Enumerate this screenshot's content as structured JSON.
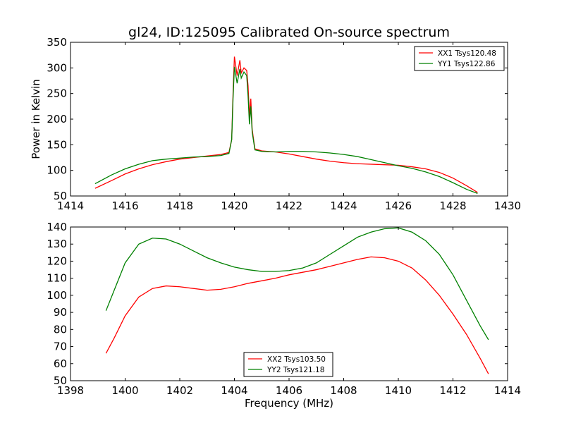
{
  "figure": {
    "title": "gl24, ID:125095 Calibrated On-source spectrum"
  },
  "chart_data": [
    {
      "type": "line",
      "title": "gl24, ID:125095 Calibrated On-source spectrum",
      "xlabel": "",
      "ylabel": "Power in Kelvin",
      "xlim": [
        1414,
        1430
      ],
      "ylim": [
        50,
        350
      ],
      "xticks": [
        1414,
        1416,
        1418,
        1420,
        1422,
        1424,
        1426,
        1428,
        1430
      ],
      "yticks": [
        50,
        100,
        150,
        200,
        250,
        300,
        350
      ],
      "grid": false,
      "legend_position": "top-right",
      "series": [
        {
          "name": "XX1 Tsys120.48",
          "color": "#ff0000",
          "points": [
            [
              1414.9,
              65
            ],
            [
              1415.5,
              80
            ],
            [
              1416,
              93
            ],
            [
              1416.5,
              103
            ],
            [
              1417,
              111
            ],
            [
              1417.5,
              117
            ],
            [
              1418,
              122
            ],
            [
              1418.5,
              125
            ],
            [
              1419,
              128
            ],
            [
              1419.5,
              131
            ],
            [
              1419.8,
              135
            ],
            [
              1419.9,
              160
            ],
            [
              1419.95,
              250
            ],
            [
              1420,
              322
            ],
            [
              1420.1,
              285
            ],
            [
              1420.2,
              315
            ],
            [
              1420.25,
              290
            ],
            [
              1420.35,
              300
            ],
            [
              1420.45,
              295
            ],
            [
              1420.5,
              265
            ],
            [
              1420.55,
              205
            ],
            [
              1420.6,
              240
            ],
            [
              1420.65,
              180
            ],
            [
              1420.75,
              142
            ],
            [
              1421,
              138
            ],
            [
              1421.5,
              136
            ],
            [
              1422,
              132
            ],
            [
              1422.5,
              127
            ],
            [
              1423,
              122
            ],
            [
              1423.5,
              118
            ],
            [
              1424,
              115
            ],
            [
              1424.5,
              113
            ],
            [
              1425,
              112
            ],
            [
              1425.5,
              111
            ],
            [
              1426,
              110
            ],
            [
              1426.5,
              107
            ],
            [
              1427,
              103
            ],
            [
              1427.5,
              96
            ],
            [
              1428,
              85
            ],
            [
              1428.5,
              70
            ],
            [
              1428.9,
              57
            ]
          ]
        },
        {
          "name": "YY1 Tsys122.86",
          "color": "#008000",
          "points": [
            [
              1414.9,
              74
            ],
            [
              1415.5,
              91
            ],
            [
              1416,
              103
            ],
            [
              1416.5,
              112
            ],
            [
              1417,
              119
            ],
            [
              1417.5,
              122
            ],
            [
              1418,
              124
            ],
            [
              1418.5,
              126
            ],
            [
              1419,
              127
            ],
            [
              1419.5,
              129
            ],
            [
              1419.8,
              133
            ],
            [
              1419.9,
              160
            ],
            [
              1419.95,
              240
            ],
            [
              1420,
              302
            ],
            [
              1420.1,
              270
            ],
            [
              1420.2,
              298
            ],
            [
              1420.25,
              280
            ],
            [
              1420.35,
              292
            ],
            [
              1420.45,
              285
            ],
            [
              1420.5,
              245
            ],
            [
              1420.55,
              190
            ],
            [
              1420.6,
              225
            ],
            [
              1420.65,
              175
            ],
            [
              1420.75,
              140
            ],
            [
              1421,
              137
            ],
            [
              1421.5,
              136
            ],
            [
              1422,
              137
            ],
            [
              1422.5,
              137
            ],
            [
              1423,
              136
            ],
            [
              1423.5,
              134
            ],
            [
              1424,
              131
            ],
            [
              1424.5,
              127
            ],
            [
              1425,
              121
            ],
            [
              1425.5,
              115
            ],
            [
              1426,
              109
            ],
            [
              1426.5,
              104
            ],
            [
              1427,
              97
            ],
            [
              1427.5,
              88
            ],
            [
              1428,
              76
            ],
            [
              1428.5,
              63
            ],
            [
              1428.9,
              55
            ]
          ]
        }
      ]
    },
    {
      "type": "line",
      "title": "",
      "xlabel": "Frequency (MHz)",
      "ylabel": "",
      "xlim": [
        1398,
        1414
      ],
      "ylim": [
        50,
        140
      ],
      "xticks": [
        1398,
        1400,
        1402,
        1404,
        1406,
        1408,
        1410,
        1412,
        1414
      ],
      "yticks": [
        50,
        60,
        70,
        80,
        90,
        100,
        110,
        120,
        130,
        140
      ],
      "grid": false,
      "legend_position": "bottom-center",
      "series": [
        {
          "name": "XX2 Tsys103.50",
          "color": "#ff0000",
          "points": [
            [
              1399.3,
              66
            ],
            [
              1399.6,
              75
            ],
            [
              1400,
              88
            ],
            [
              1400.5,
              99
            ],
            [
              1401,
              104
            ],
            [
              1401.5,
              105.5
            ],
            [
              1402,
              105
            ],
            [
              1402.5,
              104
            ],
            [
              1403,
              103
            ],
            [
              1403.5,
              103.5
            ],
            [
              1404,
              105
            ],
            [
              1404.5,
              107
            ],
            [
              1405,
              108.5
            ],
            [
              1405.5,
              110
            ],
            [
              1406,
              112
            ],
            [
              1406.5,
              113.5
            ],
            [
              1407,
              115
            ],
            [
              1407.5,
              117
            ],
            [
              1408,
              119
            ],
            [
              1408.5,
              121
            ],
            [
              1409,
              122.5
            ],
            [
              1409.5,
              122
            ],
            [
              1410,
              120
            ],
            [
              1410.5,
              116
            ],
            [
              1411,
              109
            ],
            [
              1411.5,
              100
            ],
            [
              1412,
              89
            ],
            [
              1412.5,
              77
            ],
            [
              1413,
              63
            ],
            [
              1413.3,
              54
            ]
          ]
        },
        {
          "name": "YY2 Tsys121.18",
          "color": "#008000",
          "points": [
            [
              1399.3,
              91
            ],
            [
              1399.6,
              103
            ],
            [
              1400,
              119
            ],
            [
              1400.5,
              130
            ],
            [
              1401,
              133.5
            ],
            [
              1401.5,
              133
            ],
            [
              1402,
              130
            ],
            [
              1402.5,
              126
            ],
            [
              1403,
              122
            ],
            [
              1403.5,
              119
            ],
            [
              1404,
              116.5
            ],
            [
              1404.5,
              115
            ],
            [
              1405,
              114
            ],
            [
              1405.5,
              114
            ],
            [
              1406,
              114.5
            ],
            [
              1406.5,
              116
            ],
            [
              1407,
              119
            ],
            [
              1407.5,
              124
            ],
            [
              1408,
              129
            ],
            [
              1408.5,
              134
            ],
            [
              1409,
              137
            ],
            [
              1409.5,
              139
            ],
            [
              1410,
              139.5
            ],
            [
              1410.5,
              137
            ],
            [
              1411,
              132
            ],
            [
              1411.5,
              124
            ],
            [
              1412,
              112
            ],
            [
              1412.5,
              97
            ],
            [
              1413,
              82
            ],
            [
              1413.3,
              74
            ]
          ]
        }
      ]
    }
  ]
}
